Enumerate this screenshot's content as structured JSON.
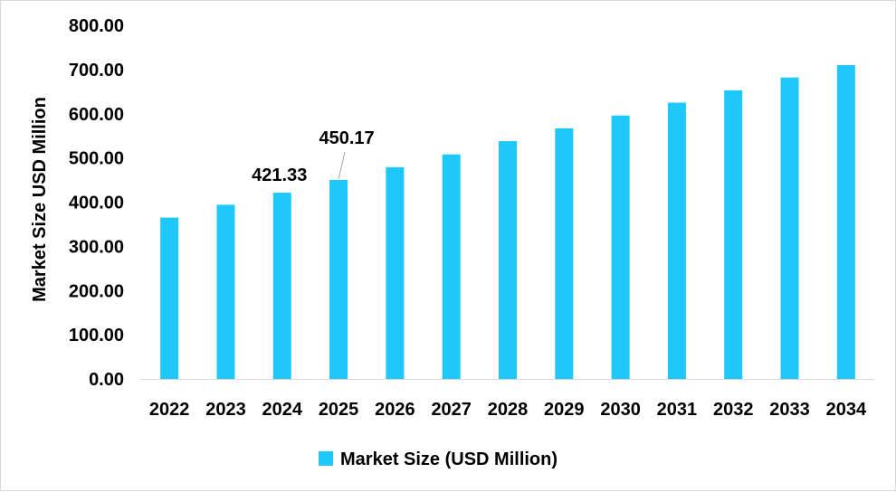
{
  "chart_data": {
    "type": "bar",
    "ylabel": "Market Size USD Million",
    "xlabel": "",
    "ylim": [
      0,
      800
    ],
    "y_ticks": [
      "0.00",
      "100.00",
      "200.00",
      "300.00",
      "400.00",
      "500.00",
      "600.00",
      "700.00",
      "800.00"
    ],
    "categories": [
      "2022",
      "2023",
      "2024",
      "2025",
      "2026",
      "2027",
      "2028",
      "2029",
      "2030",
      "2031",
      "2032",
      "2033",
      "2034"
    ],
    "series": [
      {
        "name": "Market Size (USD Million)",
        "color": "#1ec8fa",
        "values": [
          365,
          394,
          421.33,
          450.17,
          479,
          508,
          538,
          567,
          596,
          625,
          653,
          682,
          710
        ]
      }
    ],
    "data_labels": [
      {
        "category": "2024",
        "text": "421.33"
      },
      {
        "category": "2025",
        "text": "450.17"
      }
    ],
    "legend_position": "bottom",
    "grid": false
  }
}
